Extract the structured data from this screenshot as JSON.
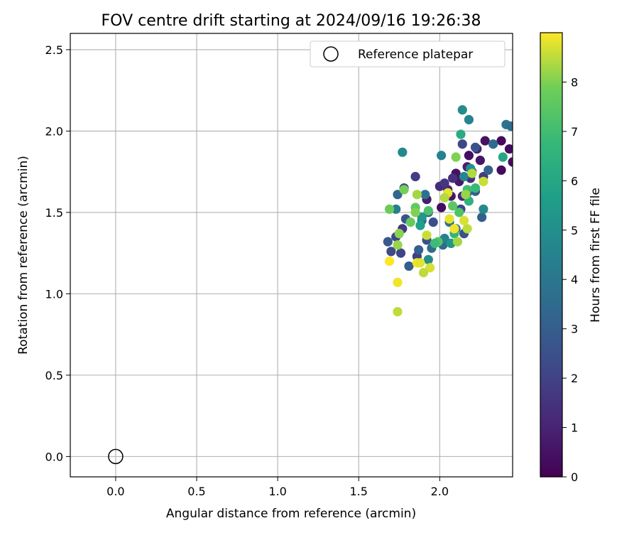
{
  "chart_data": {
    "type": "scatter",
    "title": "FOV centre drift starting at 2024/09/16 19:26:38",
    "xlabel": "Angular distance from reference (arcmin)",
    "ylabel": "Rotation from reference (arcmin)",
    "xlim": [
      -0.28,
      2.45
    ],
    "ylim": [
      -0.125,
      2.6
    ],
    "xticks": [
      0.0,
      0.5,
      1.0,
      1.5,
      2.0
    ],
    "xtick_labels": [
      "0.0",
      "0.5",
      "1.0",
      "1.5",
      "2.0"
    ],
    "yticks": [
      0.0,
      0.5,
      1.0,
      1.5,
      2.0,
      2.5
    ],
    "ytick_labels": [
      "0.0",
      "0.5",
      "1.0",
      "1.5",
      "2.0",
      "2.5"
    ],
    "grid": true,
    "legend": {
      "position": "upper-right",
      "entries": [
        "Reference platepar"
      ]
    },
    "colorbar": {
      "label": "Hours from first FF file",
      "colormap": "viridis",
      "range": [
        0,
        9
      ],
      "ticks": [
        0,
        1,
        2,
        3,
        4,
        5,
        6,
        7,
        8
      ],
      "tick_labels": [
        "0",
        "1",
        "2",
        "3",
        "4",
        "5",
        "6",
        "7",
        "8"
      ]
    },
    "reference_point": {
      "x": 0.0,
      "y": 0.0,
      "marker": "open-circle"
    },
    "marker_color_key": "c",
    "series": [
      {
        "x": 2.38,
        "y": 1.94,
        "c": 0.2
      },
      {
        "x": 2.43,
        "y": 1.89,
        "c": 0.3
      },
      {
        "x": 2.45,
        "y": 1.81,
        "c": 0.4
      },
      {
        "x": 2.38,
        "y": 1.76,
        "c": 0.3
      },
      {
        "x": 2.28,
        "y": 1.94,
        "c": 0.5
      },
      {
        "x": 2.25,
        "y": 1.82,
        "c": 0.6
      },
      {
        "x": 2.23,
        "y": 1.89,
        "c": 0.8
      },
      {
        "x": 2.18,
        "y": 1.85,
        "c": 0.4
      },
      {
        "x": 2.17,
        "y": 1.78,
        "c": 0.9
      },
      {
        "x": 2.1,
        "y": 1.74,
        "c": 0.5
      },
      {
        "x": 2.12,
        "y": 1.69,
        "c": 0.7
      },
      {
        "x": 2.05,
        "y": 1.64,
        "c": 1.0
      },
      {
        "x": 2.07,
        "y": 1.6,
        "c": 0.6
      },
      {
        "x": 2.0,
        "y": 1.66,
        "c": 1.2
      },
      {
        "x": 2.01,
        "y": 1.53,
        "c": 0.4
      },
      {
        "x": 1.92,
        "y": 1.58,
        "c": 0.8
      },
      {
        "x": 2.14,
        "y": 1.6,
        "c": 1.1
      },
      {
        "x": 2.19,
        "y": 1.71,
        "c": 1.3
      },
      {
        "x": 2.03,
        "y": 1.68,
        "c": 1.6
      },
      {
        "x": 2.08,
        "y": 1.71,
        "c": 1.4
      },
      {
        "x": 2.14,
        "y": 1.92,
        "c": 2.2
      },
      {
        "x": 2.22,
        "y": 1.9,
        "c": 2.6
      },
      {
        "x": 2.2,
        "y": 1.75,
        "c": 2.3
      },
      {
        "x": 2.17,
        "y": 1.62,
        "c": 2.4
      },
      {
        "x": 2.13,
        "y": 1.52,
        "c": 2.1
      },
      {
        "x": 2.15,
        "y": 1.37,
        "c": 2.5
      },
      {
        "x": 2.22,
        "y": 1.63,
        "c": 2.9
      },
      {
        "x": 2.27,
        "y": 1.72,
        "c": 1.8
      },
      {
        "x": 2.3,
        "y": 1.76,
        "c": 3.2
      },
      {
        "x": 2.33,
        "y": 1.92,
        "c": 3.5
      },
      {
        "x": 2.41,
        "y": 2.04,
        "c": 3.9
      },
      {
        "x": 2.44,
        "y": 2.03,
        "c": 3.6
      },
      {
        "x": 2.26,
        "y": 1.47,
        "c": 3.0
      },
      {
        "x": 1.85,
        "y": 1.72,
        "c": 1.9
      },
      {
        "x": 1.78,
        "y": 1.65,
        "c": 2.0
      },
      {
        "x": 1.74,
        "y": 1.61,
        "c": 3.3
      },
      {
        "x": 1.79,
        "y": 1.46,
        "c": 2.7
      },
      {
        "x": 1.77,
        "y": 1.4,
        "c": 1.7
      },
      {
        "x": 1.73,
        "y": 1.35,
        "c": 2.2
      },
      {
        "x": 1.68,
        "y": 1.32,
        "c": 2.8
      },
      {
        "x": 1.7,
        "y": 1.26,
        "c": 2.3
      },
      {
        "x": 1.76,
        "y": 1.25,
        "c": 2.1
      },
      {
        "x": 1.81,
        "y": 1.17,
        "c": 3.0
      },
      {
        "x": 1.86,
        "y": 1.23,
        "c": 1.9
      },
      {
        "x": 1.87,
        "y": 1.27,
        "c": 3.1
      },
      {
        "x": 1.92,
        "y": 1.33,
        "c": 2.6
      },
      {
        "x": 1.96,
        "y": 1.44,
        "c": 2.4
      },
      {
        "x": 1.93,
        "y": 1.5,
        "c": 2.9
      },
      {
        "x": 1.89,
        "y": 1.45,
        "c": 3.4
      },
      {
        "x": 1.91,
        "y": 1.61,
        "c": 3.8
      },
      {
        "x": 1.95,
        "y": 1.28,
        "c": 3.6
      },
      {
        "x": 2.02,
        "y": 1.3,
        "c": 3.5
      },
      {
        "x": 2.06,
        "y": 1.44,
        "c": 3.7
      },
      {
        "x": 2.1,
        "y": 1.4,
        "c": 4.1
      },
      {
        "x": 1.73,
        "y": 1.52,
        "c": 4.3
      },
      {
        "x": 1.77,
        "y": 1.87,
        "c": 4.8
      },
      {
        "x": 2.01,
        "y": 1.85,
        "c": 4.5
      },
      {
        "x": 2.14,
        "y": 2.13,
        "c": 4.9
      },
      {
        "x": 2.18,
        "y": 2.07,
        "c": 4.6
      },
      {
        "x": 2.15,
        "y": 1.72,
        "c": 4.7
      },
      {
        "x": 2.19,
        "y": 1.77,
        "c": 5.1
      },
      {
        "x": 2.27,
        "y": 1.52,
        "c": 4.8
      },
      {
        "x": 2.03,
        "y": 1.34,
        "c": 4.4
      },
      {
        "x": 2.07,
        "y": 1.31,
        "c": 5.3
      },
      {
        "x": 1.93,
        "y": 1.21,
        "c": 5.0
      },
      {
        "x": 1.89,
        "y": 1.47,
        "c": 5.4
      },
      {
        "x": 1.88,
        "y": 1.42,
        "c": 5.7
      },
      {
        "x": 2.13,
        "y": 1.98,
        "c": 6.2
      },
      {
        "x": 2.39,
        "y": 1.84,
        "c": 6.0
      },
      {
        "x": 2.18,
        "y": 1.57,
        "c": 6.5
      },
      {
        "x": 2.22,
        "y": 1.65,
        "c": 6.8
      },
      {
        "x": 2.17,
        "y": 1.64,
        "c": 7.0
      },
      {
        "x": 2.09,
        "y": 1.37,
        "c": 6.6
      },
      {
        "x": 1.93,
        "y": 1.51,
        "c": 7.2
      },
      {
        "x": 1.99,
        "y": 1.32,
        "c": 7.4
      },
      {
        "x": 1.85,
        "y": 1.53,
        "c": 7.6
      },
      {
        "x": 1.69,
        "y": 1.52,
        "c": 7.8
      },
      {
        "x": 1.78,
        "y": 1.64,
        "c": 7.9
      },
      {
        "x": 1.82,
        "y": 1.44,
        "c": 7.7
      },
      {
        "x": 1.85,
        "y": 1.5,
        "c": 8.0
      },
      {
        "x": 1.75,
        "y": 1.37,
        "c": 8.1
      },
      {
        "x": 1.74,
        "y": 1.3,
        "c": 8.2
      },
      {
        "x": 1.86,
        "y": 1.61,
        "c": 8.3
      },
      {
        "x": 2.08,
        "y": 1.54,
        "c": 7.5
      },
      {
        "x": 2.1,
        "y": 1.84,
        "c": 8.0
      },
      {
        "x": 2.2,
        "y": 1.74,
        "c": 8.4
      },
      {
        "x": 2.16,
        "y": 1.61,
        "c": 8.2
      },
      {
        "x": 2.27,
        "y": 1.69,
        "c": 8.6
      },
      {
        "x": 2.17,
        "y": 1.4,
        "c": 8.5
      },
      {
        "x": 2.15,
        "y": 1.45,
        "c": 8.7
      },
      {
        "x": 2.06,
        "y": 1.46,
        "c": 8.8
      },
      {
        "x": 2.09,
        "y": 1.4,
        "c": 8.9
      },
      {
        "x": 2.05,
        "y": 1.62,
        "c": 8.8
      },
      {
        "x": 2.03,
        "y": 1.59,
        "c": 8.4
      },
      {
        "x": 1.92,
        "y": 1.36,
        "c": 8.6
      },
      {
        "x": 1.94,
        "y": 1.16,
        "c": 8.7
      },
      {
        "x": 1.9,
        "y": 1.13,
        "c": 8.5
      },
      {
        "x": 1.86,
        "y": 1.19,
        "c": 8.9
      },
      {
        "x": 1.88,
        "y": 1.19,
        "c": 8.8
      },
      {
        "x": 1.69,
        "y": 1.2,
        "c": 9.0
      },
      {
        "x": 1.74,
        "y": 1.07,
        "c": 8.9
      },
      {
        "x": 1.74,
        "y": 0.89,
        "c": 8.5
      },
      {
        "x": 2.11,
        "y": 1.32,
        "c": 8.3
      },
      {
        "x": 1.97,
        "y": 1.31,
        "c": 6.9
      },
      {
        "x": 2.12,
        "y": 1.5,
        "c": 7.3
      }
    ]
  }
}
